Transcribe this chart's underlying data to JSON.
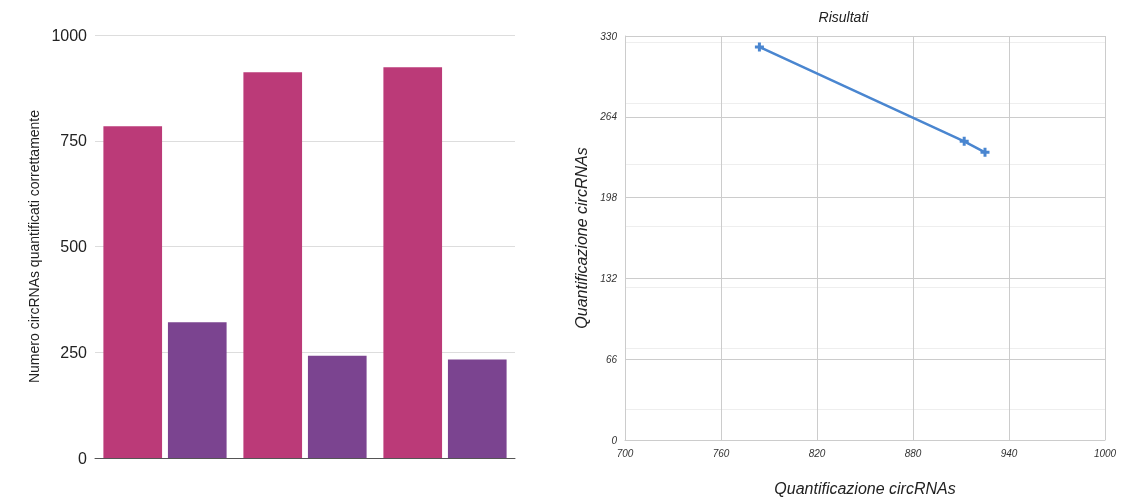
{
  "chart_data": [
    {
      "type": "bar",
      "ylabel": "Numero circRNAs quantificati correttamente",
      "categories": [
        null,
        null,
        null
      ],
      "series": [
        {
          "color": "#bb3a78",
          "values": [
            784,
            912,
            924
          ]
        },
        {
          "color": "#7b4490",
          "values": [
            321,
            242,
            233
          ]
        }
      ],
      "ylim": [
        0,
        1000
      ],
      "yticks": [
        0,
        250,
        500,
        750,
        1000
      ],
      "grid": "y"
    },
    {
      "type": "line",
      "title": "Risultati",
      "xlabel": "Quantificazione circRNAs",
      "ylabel": "Quantificazione circRNAs",
      "series": [
        {
          "color": "#4a86d0",
          "x": [
            784,
            912,
            925
          ],
          "values": [
            321,
            244,
            235
          ]
        }
      ],
      "xlim": [
        700,
        1000
      ],
      "xticks": [
        700,
        760,
        820,
        880,
        940,
        1000
      ],
      "ylim": [
        0,
        330
      ],
      "yticks": [
        0,
        66,
        132,
        198,
        264,
        330
      ],
      "grid": true,
      "marker": "cross",
      "line_style": "solid"
    }
  ]
}
